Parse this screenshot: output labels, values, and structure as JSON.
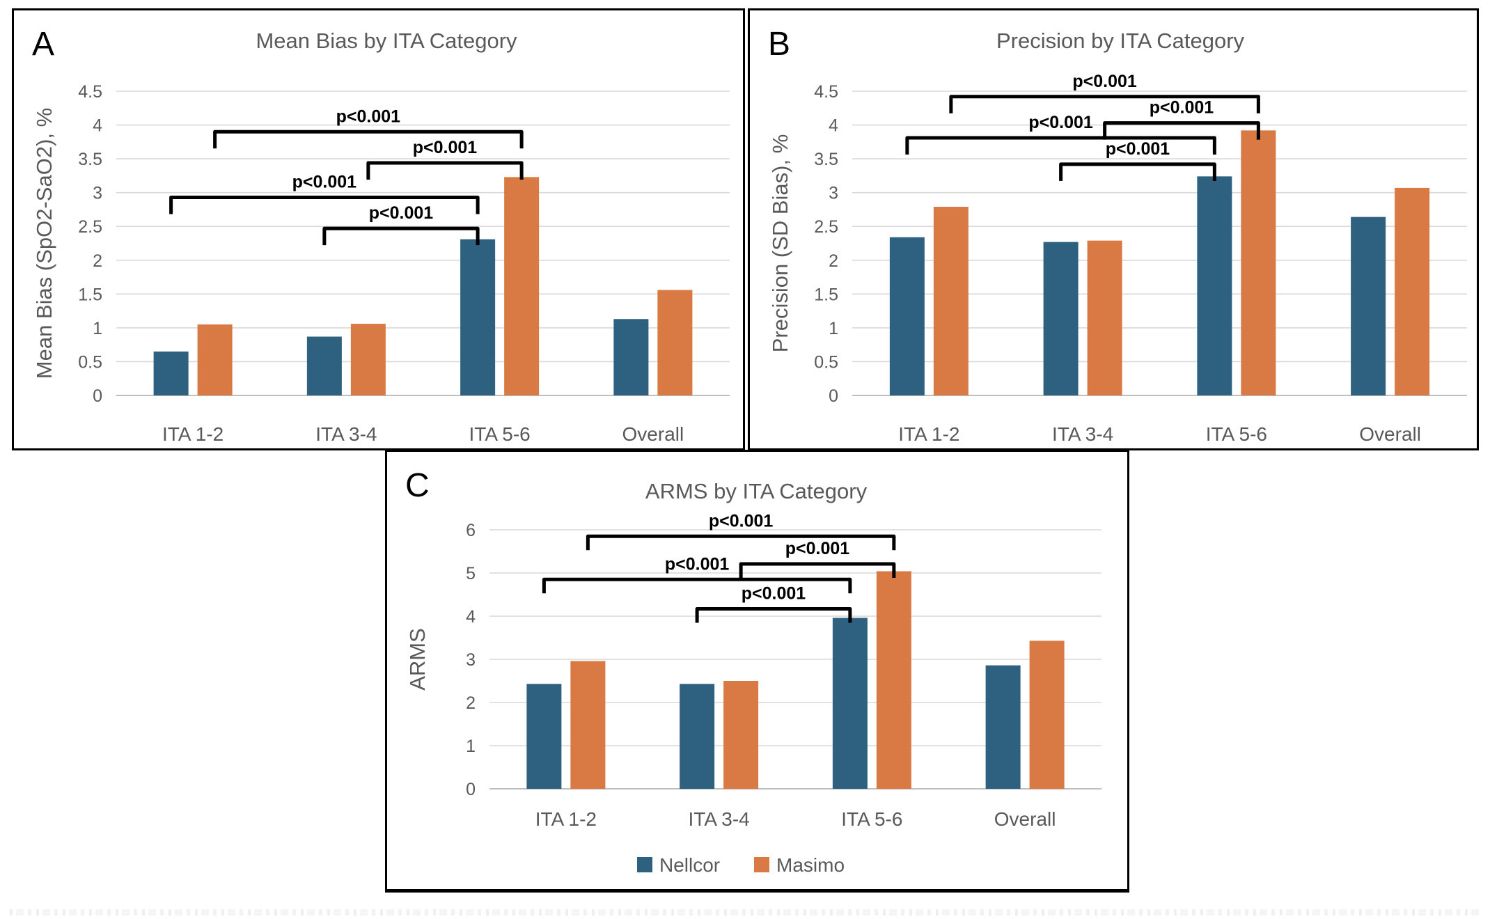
{
  "style": {
    "background": "#FFFFFF",
    "text_color": "#595959",
    "panel_letter_color": "#000000",
    "gridline_color": "#D9D9D9",
    "zero_line_color": "#BFBFBF",
    "bracket_color": "#000000",
    "panel_border_color": "#000000",
    "nellcor_color": "#2E617F",
    "masimo_color": "#D97943"
  },
  "legend": {
    "items": [
      {
        "label": "Nellcor",
        "color": "#2E617F"
      },
      {
        "label": "Masimo",
        "color": "#D97943"
      }
    ]
  },
  "chart_data": [
    {
      "panel_label": "A",
      "type": "bar",
      "title": "Mean Bias by ITA Category",
      "xlabel": "",
      "ylabel": "Mean Bias (SpO2-SaO2), %",
      "categories": [
        "ITA 1-2",
        "ITA 3-4",
        "ITA 5-6",
        "Overall"
      ],
      "series": [
        {
          "name": "Nellcor",
          "color": "#2E617F",
          "values": [
            0.65,
            0.87,
            2.31,
            1.13
          ]
        },
        {
          "name": "Masimo",
          "color": "#D97943",
          "values": [
            1.05,
            1.06,
            3.23,
            1.56
          ]
        }
      ],
      "ylim": [
        0,
        4.5
      ],
      "ytick_step": 0.5,
      "yticks": [
        "0",
        "0.5",
        "1",
        "1.5",
        "2",
        "2.5",
        "3",
        "3.5",
        "4",
        "4.5"
      ],
      "grid": true,
      "legend_position": "none",
      "significance_brackets": [
        {
          "label": "p<0.001",
          "from_category": 0,
          "to_category": 2,
          "series": 1,
          "y": 3.9
        },
        {
          "label": "p<0.001",
          "from_category": 1,
          "to_category": 2,
          "series": 1,
          "y": 3.44
        },
        {
          "label": "p<0.001",
          "from_category": 0,
          "to_category": 2,
          "series": 0,
          "y": 2.93
        },
        {
          "label": "p<0.001",
          "from_category": 1,
          "to_category": 2,
          "series": 0,
          "y": 2.47
        }
      ]
    },
    {
      "panel_label": "B",
      "type": "bar",
      "title": "Precision by ITA Category",
      "xlabel": "",
      "ylabel": "Precision (SD Bias), %",
      "categories": [
        "ITA 1-2",
        "ITA 3-4",
        "ITA 5-6",
        "Overall"
      ],
      "series": [
        {
          "name": "Nellcor",
          "color": "#2E617F",
          "values": [
            2.34,
            2.27,
            3.24,
            2.64
          ]
        },
        {
          "name": "Masimo",
          "color": "#D97943",
          "values": [
            2.79,
            2.29,
            3.92,
            3.07
          ]
        }
      ],
      "ylim": [
        0,
        4.5
      ],
      "ytick_step": 0.5,
      "yticks": [
        "0",
        "0.5",
        "1",
        "1.5",
        "2",
        "2.5",
        "3",
        "3.5",
        "4",
        "4.5"
      ],
      "grid": true,
      "legend_position": "none",
      "significance_brackets": [
        {
          "label": "p<0.001",
          "from_category": 0,
          "to_category": 2,
          "series": 1,
          "y": 4.42
        },
        {
          "label": "p<0.001",
          "from_category": 1,
          "to_category": 2,
          "series": 1,
          "y": 4.03
        },
        {
          "label": "p<0.001",
          "from_category": 0,
          "to_category": 2,
          "series": 0,
          "y": 3.81
        },
        {
          "label": "p<0.001",
          "from_category": 1,
          "to_category": 2,
          "series": 0,
          "y": 3.42
        }
      ]
    },
    {
      "panel_label": "C",
      "type": "bar",
      "title": "ARMS by ITA Category",
      "xlabel": "",
      "ylabel": "ARMS",
      "categories": [
        "ITA 1-2",
        "ITA 3-4",
        "ITA 5-6",
        "Overall"
      ],
      "series": [
        {
          "name": "Nellcor",
          "color": "#2E617F",
          "values": [
            2.43,
            2.43,
            3.96,
            2.86
          ]
        },
        {
          "name": "Masimo",
          "color": "#D97943",
          "values": [
            2.96,
            2.5,
            5.04,
            3.43
          ]
        }
      ],
      "ylim": [
        0,
        6
      ],
      "ytick_step": 1,
      "yticks": [
        "0",
        "1",
        "2",
        "3",
        "4",
        "5",
        "6"
      ],
      "grid": true,
      "legend_position": "bottom",
      "significance_brackets": [
        {
          "label": "p<0.001",
          "from_category": 0,
          "to_category": 2,
          "series": 1,
          "y": 5.85
        },
        {
          "label": "p<0.001",
          "from_category": 1,
          "to_category": 2,
          "series": 1,
          "y": 5.21
        },
        {
          "label": "p<0.001",
          "from_category": 0,
          "to_category": 2,
          "series": 0,
          "y": 4.85
        },
        {
          "label": "p<0.001",
          "from_category": 1,
          "to_category": 2,
          "series": 0,
          "y": 4.17
        }
      ]
    }
  ]
}
